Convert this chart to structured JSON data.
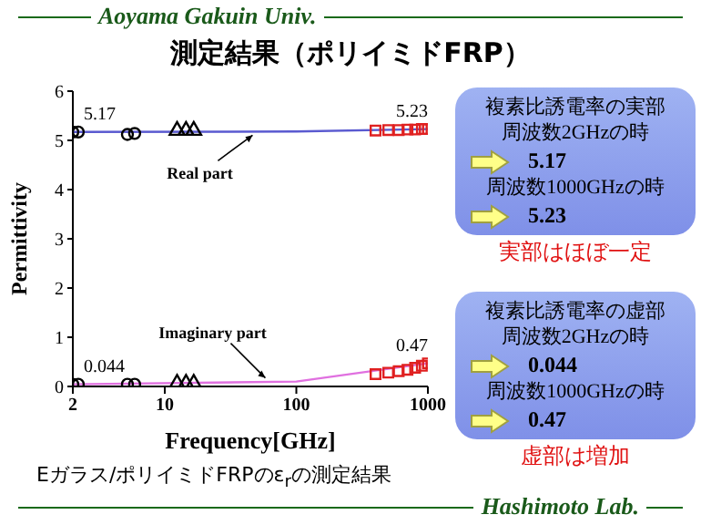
{
  "chart_data": {
    "type": "scatter",
    "title": "測定結果（ポリイミドFRP）",
    "xlabel": "Frequency[GHz]",
    "ylabel": "Permittivity",
    "log": "x",
    "xlim": [
      2,
      1000
    ],
    "xticks": [
      2,
      10,
      100,
      1000
    ],
    "ylim": [
      0,
      6
    ],
    "yticks": [
      0,
      1,
      2,
      3,
      4,
      5,
      6
    ],
    "grid": false,
    "legend": false,
    "series": [
      {
        "type": "line",
        "marker": "none",
        "color": "#5a5ad0",
        "x": [
          2,
          100,
          1000
        ],
        "values": [
          5.17,
          5.18,
          5.23
        ]
      },
      {
        "type": "line",
        "marker": "none",
        "color": "#e070e0",
        "x": [
          2,
          100,
          1000
        ],
        "values": [
          0.044,
          0.1,
          0.47
        ]
      },
      {
        "marker": "circle",
        "color": "#000000",
        "x": [
          2,
          2.2,
          5.2,
          5.9
        ],
        "values": [
          5.17,
          5.17,
          5.12,
          5.14
        ]
      },
      {
        "marker": "triangle",
        "color": "#000000",
        "x": [
          12.4,
          14.5,
          16.6
        ],
        "values": [
          5.2,
          5.2,
          5.2
        ]
      },
      {
        "marker": "square",
        "color": "#e02020",
        "x": [
          400,
          500,
          600,
          700,
          800,
          900,
          1000
        ],
        "values": [
          5.2,
          5.21,
          5.21,
          5.22,
          5.22,
          5.23,
          5.23
        ]
      },
      {
        "marker": "circle",
        "color": "#000000",
        "x": [
          2,
          2.2,
          5.2,
          5.9
        ],
        "values": [
          0.044,
          0.044,
          0.044,
          0.044
        ]
      },
      {
        "marker": "triangle",
        "color": "#000000",
        "x": [
          12.4,
          14.5,
          16.6
        ],
        "values": [
          0.06,
          0.06,
          0.06
        ]
      },
      {
        "marker": "square",
        "color": "#e02020",
        "x": [
          400,
          500,
          600,
          700,
          800,
          900,
          1000
        ],
        "values": [
          0.25,
          0.28,
          0.31,
          0.34,
          0.38,
          0.42,
          0.47
        ]
      }
    ],
    "annotations": [
      {
        "text": "5.17",
        "x": 2,
        "y": 5.17
      },
      {
        "text": "5.23",
        "x": 1000,
        "y": 5.23
      },
      {
        "text": "0.044",
        "x": 2,
        "y": 0.044
      },
      {
        "text": "0.47",
        "x": 1000,
        "y": 0.47
      },
      {
        "text": "Real part",
        "x": 48,
        "y": 5.18
      },
      {
        "text": "Imaginary part",
        "x": 60,
        "y": 0.1
      },
      "Aoyama Gakuin Univ.",
      "Eガラス/ポリイミドFRPのε$_{r}$の測定結果",
      "Hashimoto Lab.",
      "複素比誘電率の実部",
      "周波数2GHzの時",
      "5.17",
      "周波数1000GHzの時",
      "5.23",
      "実部はほぼ一定",
      "複素比誘電率の虚部",
      "周波数2GHzの時",
      "0.044",
      "周波数1000GHzの時",
      "0.47",
      "虚部は増加"
    ]
  }
}
